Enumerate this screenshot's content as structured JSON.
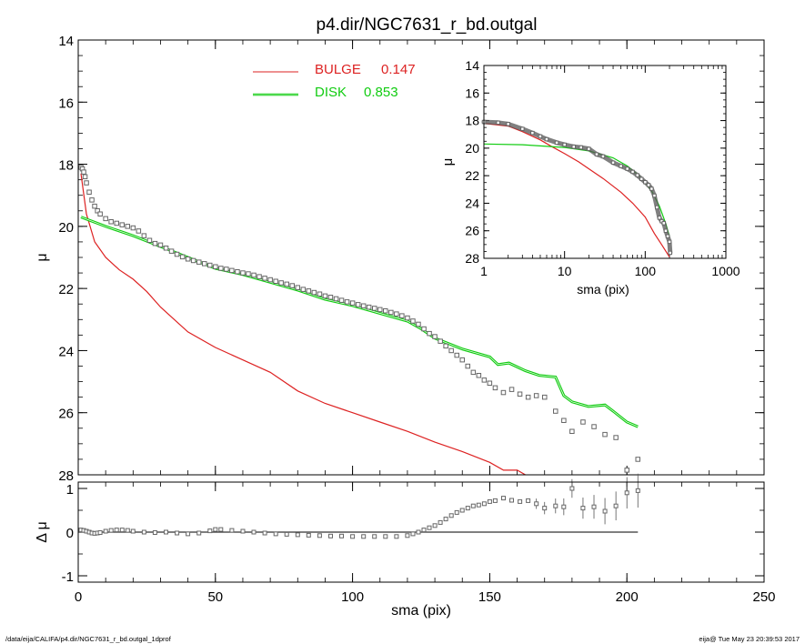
{
  "title": "p4.dir/NGC7631_r_bd.outgal",
  "footer": {
    "left": "/data/eija/CALIFA/p4.dir/NGC7631_r_bd.outgal_1dprof",
    "right": "eija@  Tue May 23 20:39:53 2017"
  },
  "legend": {
    "bulge_label": "BULGE",
    "bulge_value": "0.147",
    "disk_label": "DISK",
    "disk_value": "0.853"
  },
  "colors": {
    "bulge": "#dd2222",
    "disk": "#11cc11",
    "data": "#666666",
    "axis": "#000000"
  },
  "chart_data": [
    {
      "id": "main-profile",
      "type": "scatter",
      "xlabel": "sma (pix)",
      "ylabel": "μ",
      "xlim": [
        0,
        250
      ],
      "ylim": [
        28,
        14
      ],
      "xticks": [
        "0",
        "50",
        "100",
        "150",
        "200",
        "250"
      ],
      "yticks": [
        "14",
        "16",
        "18",
        "20",
        "22",
        "24",
        "26",
        "28"
      ],
      "legend_placement": "top-left",
      "series": [
        {
          "name": "BULGE",
          "kind": "line",
          "x": [
            1,
            3,
            6,
            10,
            15,
            20,
            25,
            30,
            35,
            40,
            50,
            60,
            70,
            80,
            90,
            100,
            110,
            120,
            130,
            140,
            150,
            155,
            160,
            163
          ],
          "y": [
            18.3,
            19.6,
            20.5,
            21.0,
            21.4,
            21.7,
            22.1,
            22.6,
            23.0,
            23.4,
            23.9,
            24.3,
            24.7,
            25.3,
            25.7,
            26.0,
            26.3,
            26.6,
            26.95,
            27.25,
            27.6,
            27.85,
            27.85,
            28.0
          ]
        },
        {
          "name": "DISK",
          "kind": "line",
          "x": [
            1,
            10,
            20,
            30,
            40,
            50,
            60,
            70,
            80,
            90,
            100,
            110,
            120,
            125,
            130,
            140,
            150,
            153,
            157,
            163,
            168,
            174,
            177,
            180,
            186,
            192,
            195,
            200,
            204
          ],
          "y": [
            19.7,
            20.0,
            20.3,
            20.65,
            21.0,
            21.35,
            21.55,
            21.8,
            22.05,
            22.35,
            22.55,
            22.8,
            23.05,
            23.3,
            23.6,
            23.95,
            24.2,
            24.45,
            24.4,
            24.65,
            24.8,
            24.85,
            25.45,
            25.65,
            25.8,
            25.75,
            25.95,
            26.3,
            26.45
          ]
        },
        {
          "name": "",
          "kind": "points",
          "x": [
            1,
            1.5,
            2,
            2.5,
            3,
            4,
            5,
            6,
            7,
            8,
            10,
            12,
            14,
            16,
            18,
            20,
            22,
            24,
            26,
            28,
            30,
            32,
            34,
            36,
            38,
            40,
            42,
            44,
            46,
            48,
            50,
            52,
            54,
            56,
            58,
            60,
            62,
            64,
            66,
            68,
            70,
            72,
            74,
            76,
            78,
            80,
            82,
            84,
            86,
            88,
            90,
            92,
            94,
            96,
            98,
            100,
            102,
            104,
            106,
            108,
            110,
            112,
            114,
            116,
            118,
            120,
            122,
            124,
            126,
            128,
            130,
            132,
            134,
            136,
            138,
            140,
            142,
            144,
            146,
            148,
            150,
            152,
            155,
            158,
            161,
            164,
            167,
            170,
            174,
            177,
            180,
            184,
            188,
            192,
            196,
            200,
            204
          ],
          "y": [
            18.1,
            18.15,
            18.25,
            18.4,
            18.6,
            18.9,
            19.15,
            19.35,
            19.5,
            19.6,
            19.75,
            19.85,
            19.9,
            19.95,
            20.0,
            20.05,
            20.15,
            20.3,
            20.45,
            20.55,
            20.6,
            20.7,
            20.8,
            20.9,
            20.98,
            21.05,
            21.1,
            21.15,
            21.2,
            21.25,
            21.3,
            21.35,
            21.38,
            21.42,
            21.46,
            21.5,
            21.53,
            21.57,
            21.62,
            21.67,
            21.72,
            21.77,
            21.82,
            21.86,
            21.91,
            21.97,
            22.03,
            22.08,
            22.13,
            22.18,
            22.24,
            22.28,
            22.33,
            22.38,
            22.43,
            22.47,
            22.52,
            22.56,
            22.6,
            22.64,
            22.68,
            22.72,
            22.77,
            22.82,
            22.88,
            22.95,
            23.05,
            23.15,
            23.3,
            23.45,
            23.55,
            23.7,
            23.85,
            24.0,
            24.15,
            24.3,
            24.5,
            24.7,
            24.8,
            24.95,
            25.05,
            25.2,
            25.35,
            25.25,
            25.4,
            25.5,
            25.45,
            25.5,
            25.95,
            26.25,
            26.6,
            26.3,
            26.45,
            26.7,
            26.8,
            27.85,
            27.5
          ]
        }
      ]
    },
    {
      "id": "inset-log-profile",
      "type": "scatter",
      "xscale": "log",
      "xlabel": "sma (pix)",
      "ylabel": "μ",
      "xlim": [
        1,
        1000
      ],
      "ylim": [
        28,
        14
      ],
      "xticks": [
        "1",
        "10",
        "100",
        "1000"
      ],
      "yticks": [
        "14",
        "16",
        "18",
        "20",
        "22",
        "24",
        "26",
        "28"
      ],
      "series": [
        {
          "name": "BULGE",
          "kind": "line",
          "x": [
            1,
            2,
            3,
            5,
            7,
            10,
            15,
            20,
            30,
            50,
            70,
            100,
            130,
            160,
            200
          ],
          "y": [
            18.2,
            18.4,
            18.8,
            19.4,
            19.9,
            20.4,
            21.0,
            21.5,
            22.2,
            23.2,
            24.0,
            25.0,
            26.2,
            27.0,
            27.9
          ]
        },
        {
          "name": "DISK",
          "kind": "line",
          "x": [
            1,
            3,
            10,
            20,
            40,
            60,
            80,
            100,
            120,
            150,
            180,
            200
          ],
          "y": [
            19.7,
            19.75,
            19.95,
            20.2,
            20.7,
            21.3,
            21.9,
            22.5,
            23.1,
            24.2,
            25.5,
            26.4
          ]
        },
        {
          "name": "",
          "kind": "points",
          "x": [
            1,
            1.5,
            2,
            3,
            4,
            5,
            6,
            8,
            10,
            13,
            16,
            20,
            25,
            30,
            40,
            50,
            60,
            70,
            80,
            90,
            100,
            110,
            120,
            130,
            140,
            150,
            160,
            170,
            180,
            190,
            200,
            204
          ],
          "y": [
            18.1,
            18.15,
            18.25,
            18.6,
            18.9,
            19.15,
            19.35,
            19.6,
            19.75,
            19.9,
            19.95,
            20.05,
            20.45,
            20.6,
            21.05,
            21.3,
            21.5,
            21.72,
            21.97,
            22.24,
            22.47,
            22.68,
            22.95,
            23.45,
            24.3,
            25.05,
            25.3,
            25.45,
            26.0,
            26.4,
            26.8,
            27.6
          ]
        }
      ]
    },
    {
      "id": "residuals",
      "type": "scatter",
      "xlabel": "sma (pix)",
      "ylabel": "Δ μ",
      "xlim": [
        0,
        250
      ],
      "ylim": [
        -1.0,
        1.0
      ],
      "xticks": [
        "0",
        "50",
        "100",
        "150",
        "200",
        "250"
      ],
      "yticks": [
        "-1",
        "0",
        "1"
      ],
      "series": [
        {
          "name": "",
          "kind": "points",
          "x": [
            1,
            2,
            3,
            4,
            5,
            6,
            7,
            8,
            10,
            12,
            14,
            16,
            18,
            20,
            24,
            28,
            32,
            36,
            40,
            44,
            48,
            50,
            52,
            56,
            60,
            64,
            68,
            72,
            76,
            80,
            84,
            88,
            92,
            96,
            100,
            104,
            108,
            112,
            116,
            120,
            122,
            124,
            126,
            128,
            130,
            132,
            134,
            136,
            138,
            140,
            142,
            144,
            146,
            148,
            150,
            152,
            155,
            158,
            161,
            164,
            167,
            170,
            174,
            177,
            180,
            184,
            188,
            192,
            196,
            200,
            204
          ],
          "y": [
            0.05,
            0.04,
            0.02,
            0.0,
            -0.02,
            -0.03,
            -0.02,
            -0.01,
            0.02,
            0.04,
            0.05,
            0.05,
            0.04,
            0.02,
            0.0,
            -0.01,
            0.0,
            -0.02,
            -0.04,
            -0.02,
            0.03,
            0.06,
            0.06,
            0.04,
            0.02,
            0.0,
            -0.02,
            -0.04,
            -0.05,
            -0.06,
            -0.07,
            -0.08,
            -0.09,
            -0.09,
            -0.1,
            -0.1,
            -0.1,
            -0.1,
            -0.1,
            -0.08,
            -0.04,
            0.0,
            0.05,
            0.1,
            0.15,
            0.22,
            0.3,
            0.38,
            0.45,
            0.5,
            0.55,
            0.6,
            0.62,
            0.65,
            0.7,
            0.72,
            0.78,
            0.73,
            0.7,
            0.72,
            0.65,
            0.55,
            0.6,
            0.58,
            1.0,
            0.55,
            0.58,
            0.48,
            0.6,
            0.9,
            0.95
          ]
        },
        {
          "name": "",
          "kind": "line",
          "x": [
            0,
            204
          ],
          "y": [
            0,
            0
          ]
        }
      ]
    }
  ]
}
